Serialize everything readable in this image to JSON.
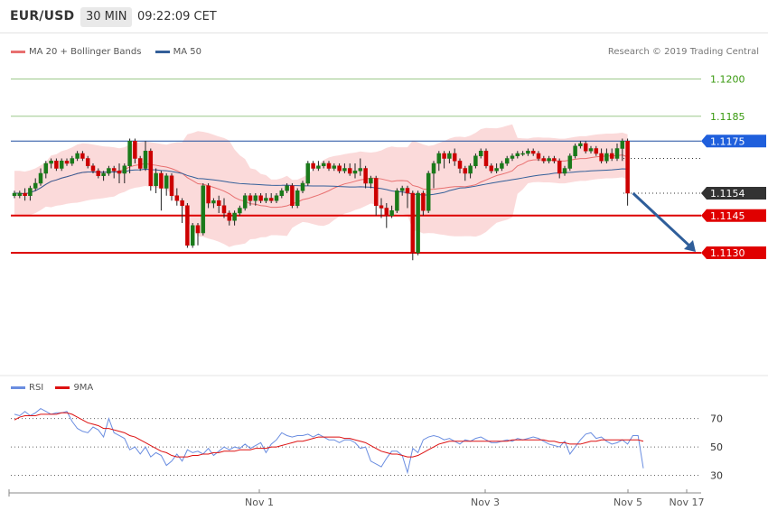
{
  "header": {
    "symbol": "EUR/USD",
    "timeframe": "30 MIN",
    "time": "09:22:09 CET"
  },
  "legend": {
    "ma20": "MA 20 + Bollinger Bands",
    "ma50": "MA 50",
    "credit": "Research © 2019 Trading Central"
  },
  "rsi_legend": {
    "rsi": "RSI",
    "ma": "9MA"
  },
  "colors": {
    "up": "#1a7a1a",
    "down": "#cc0000",
    "ma20": "#e87070",
    "ma50": "#335f99",
    "band": "#fbdada",
    "rsi": "#6a8de0",
    "rsi_ma": "#dd1111"
  },
  "chart_data": [
    {
      "type": "candlestick",
      "ylim": [
        1.1082,
        1.1218
      ],
      "x": [
        "Nov 1",
        "Nov 3",
        "Nov 5",
        "Nov 17"
      ],
      "levels": [
        {
          "value": 1.12,
          "label": "1.1200",
          "style": "target"
        },
        {
          "value": 1.1185,
          "label": "1.1185",
          "style": "target"
        },
        {
          "value": 1.1175,
          "label": "1.1175",
          "style": "pivot"
        },
        {
          "value": 1.1154,
          "label": "1.1154",
          "style": "last"
        },
        {
          "value": 1.1145,
          "label": "1.1145",
          "style": "support"
        },
        {
          "value": 1.113,
          "label": "1.1130",
          "style": "support"
        }
      ],
      "forecast": {
        "from": 1.1154,
        "to": 1.113
      },
      "candles": [
        [
          1.1153,
          1.1154,
          1.1152,
          1.1155
        ],
        [
          1.1153,
          1.1154,
          1.1152,
          1.1155
        ],
        [
          1.1154,
          1.1153,
          1.1151,
          1.1156
        ],
        [
          1.1153,
          1.1156,
          1.1151,
          1.1157
        ],
        [
          1.1156,
          1.1158,
          1.1155,
          1.116
        ],
        [
          1.1158,
          1.1162,
          1.1157,
          1.1164
        ],
        [
          1.1162,
          1.1166,
          1.116,
          1.1167
        ],
        [
          1.1166,
          1.1167,
          1.1164,
          1.1168
        ],
        [
          1.1167,
          1.1164,
          1.1163,
          1.1168
        ],
        [
          1.1164,
          1.1167,
          1.1163,
          1.1168
        ],
        [
          1.1167,
          1.1166,
          1.1165,
          1.1168
        ],
        [
          1.1166,
          1.1168,
          1.1165,
          1.1169
        ],
        [
          1.1168,
          1.117,
          1.1167,
          1.1171
        ],
        [
          1.117,
          1.1168,
          1.1167,
          1.1171
        ],
        [
          1.1168,
          1.1165,
          1.1164,
          1.1169
        ],
        [
          1.1165,
          1.1163,
          1.1162,
          1.1166
        ],
        [
          1.1163,
          1.1161,
          1.116,
          1.1164
        ],
        [
          1.1161,
          1.1162,
          1.1159,
          1.1163
        ],
        [
          1.1162,
          1.1164,
          1.1161,
          1.1165
        ],
        [
          1.1164,
          1.1163,
          1.116,
          1.1165
        ],
        [
          1.1163,
          1.1162,
          1.1158,
          1.1166
        ],
        [
          1.1162,
          1.1165,
          1.1158,
          1.1166
        ],
        [
          1.1165,
          1.1175,
          1.1162,
          1.1176
        ],
        [
          1.1175,
          1.1168,
          1.1166,
          1.1176
        ],
        [
          1.1168,
          1.1164,
          1.1163,
          1.1169
        ],
        [
          1.1164,
          1.1171,
          1.1163,
          1.1175
        ],
        [
          1.1171,
          1.1157,
          1.1155,
          1.1172
        ],
        [
          1.1157,
          1.1162,
          1.1154,
          1.1164
        ],
        [
          1.1162,
          1.1156,
          1.1147,
          1.1163
        ],
        [
          1.1156,
          1.1161,
          1.1153,
          1.1162
        ],
        [
          1.1161,
          1.1153,
          1.1151,
          1.1162
        ],
        [
          1.1153,
          1.1151,
          1.1149,
          1.1156
        ],
        [
          1.1151,
          1.1149,
          1.1142,
          1.1152
        ],
        [
          1.1149,
          1.1133,
          1.1132,
          1.115
        ],
        [
          1.1133,
          1.1141,
          1.1132,
          1.1142
        ],
        [
          1.1141,
          1.1138,
          1.1133,
          1.1142
        ],
        [
          1.1138,
          1.1157,
          1.1137,
          1.1158
        ],
        [
          1.1157,
          1.115,
          1.1148,
          1.1158
        ],
        [
          1.115,
          1.1151,
          1.1148,
          1.1152
        ],
        [
          1.1151,
          1.1149,
          1.1146,
          1.1153
        ],
        [
          1.1149,
          1.1146,
          1.1144,
          1.1152
        ],
        [
          1.1146,
          1.1143,
          1.1141,
          1.1147
        ],
        [
          1.1143,
          1.1146,
          1.1141,
          1.1147
        ],
        [
          1.1146,
          1.1148,
          1.1145,
          1.1149
        ],
        [
          1.1148,
          1.1153,
          1.1147,
          1.1154
        ],
        [
          1.1153,
          1.1151,
          1.1149,
          1.1154
        ],
        [
          1.1151,
          1.1153,
          1.1149,
          1.1154
        ],
        [
          1.1153,
          1.1151,
          1.115,
          1.1154
        ],
        [
          1.1151,
          1.1152,
          1.115,
          1.1154
        ],
        [
          1.1152,
          1.1151,
          1.115,
          1.1154
        ],
        [
          1.1151,
          1.1153,
          1.115,
          1.1154
        ],
        [
          1.1153,
          1.1155,
          1.1152,
          1.1156
        ],
        [
          1.1155,
          1.1157,
          1.1154,
          1.1158
        ],
        [
          1.1157,
          1.1149,
          1.1148,
          1.1158
        ],
        [
          1.1149,
          1.1155,
          1.1148,
          1.1156
        ],
        [
          1.1155,
          1.1158,
          1.1154,
          1.1159
        ],
        [
          1.1158,
          1.1166,
          1.1157,
          1.1167
        ],
        [
          1.1166,
          1.1164,
          1.1163,
          1.1167
        ],
        [
          1.1164,
          1.1165,
          1.1163,
          1.1167
        ],
        [
          1.1165,
          1.1166,
          1.1164,
          1.1167
        ],
        [
          1.1166,
          1.1164,
          1.1163,
          1.1167
        ],
        [
          1.1164,
          1.1165,
          1.1163,
          1.1166
        ],
        [
          1.1165,
          1.1163,
          1.1162,
          1.1166
        ],
        [
          1.1163,
          1.1164,
          1.1162,
          1.1166
        ],
        [
          1.1164,
          1.1162,
          1.1161,
          1.1166
        ],
        [
          1.1162,
          1.1163,
          1.116,
          1.1166
        ],
        [
          1.1163,
          1.1164,
          1.1161,
          1.1168
        ],
        [
          1.1164,
          1.1158,
          1.1156,
          1.1165
        ],
        [
          1.1158,
          1.116,
          1.1156,
          1.1161
        ],
        [
          1.116,
          1.1149,
          1.1145,
          1.1161
        ],
        [
          1.1149,
          1.1148,
          1.1144,
          1.1152
        ],
        [
          1.1148,
          1.1145,
          1.114,
          1.115
        ],
        [
          1.1145,
          1.1147,
          1.1144,
          1.1149
        ],
        [
          1.1147,
          1.1155,
          1.1146,
          1.1156
        ],
        [
          1.1155,
          1.1156,
          1.1153,
          1.1157
        ],
        [
          1.1156,
          1.1154,
          1.1148,
          1.1157
        ],
        [
          1.1154,
          1.113,
          1.1127,
          1.1155
        ],
        [
          1.113,
          1.1154,
          1.1129,
          1.1155
        ],
        [
          1.1154,
          1.1147,
          1.1145,
          1.1155
        ],
        [
          1.1147,
          1.1162,
          1.1146,
          1.1163
        ],
        [
          1.1162,
          1.1166,
          1.1156,
          1.1167
        ],
        [
          1.1166,
          1.117,
          1.1163,
          1.1171
        ],
        [
          1.117,
          1.1168,
          1.1164,
          1.1171
        ],
        [
          1.1168,
          1.117,
          1.1166,
          1.1171
        ],
        [
          1.117,
          1.1167,
          1.1165,
          1.1172
        ],
        [
          1.1167,
          1.1164,
          1.1162,
          1.1168
        ],
        [
          1.1164,
          1.1162,
          1.1159,
          1.1165
        ],
        [
          1.1162,
          1.1165,
          1.116,
          1.1166
        ],
        [
          1.1165,
          1.1169,
          1.1164,
          1.117
        ],
        [
          1.1169,
          1.1171,
          1.1168,
          1.1172
        ],
        [
          1.1171,
          1.1165,
          1.1164,
          1.1172
        ],
        [
          1.1165,
          1.1163,
          1.1162,
          1.1166
        ],
        [
          1.1163,
          1.1164,
          1.1162,
          1.1166
        ],
        [
          1.1164,
          1.1166,
          1.1163,
          1.1167
        ],
        [
          1.1166,
          1.1168,
          1.1165,
          1.1169
        ],
        [
          1.1168,
          1.1169,
          1.1167,
          1.117
        ],
        [
          1.1169,
          1.117,
          1.1168,
          1.1171
        ],
        [
          1.117,
          1.117,
          1.1169,
          1.1171
        ],
        [
          1.117,
          1.1171,
          1.1169,
          1.1172
        ],
        [
          1.1171,
          1.117,
          1.1169,
          1.1172
        ],
        [
          1.117,
          1.1168,
          1.1167,
          1.1171
        ],
        [
          1.1168,
          1.1167,
          1.1166,
          1.1169
        ],
        [
          1.1167,
          1.1168,
          1.1166,
          1.1169
        ],
        [
          1.1168,
          1.1167,
          1.1166,
          1.1169
        ],
        [
          1.1167,
          1.1162,
          1.116,
          1.1168
        ],
        [
          1.1162,
          1.1164,
          1.1161,
          1.1165
        ],
        [
          1.1164,
          1.1169,
          1.1163,
          1.117
        ],
        [
          1.1169,
          1.1173,
          1.1168,
          1.1174
        ],
        [
          1.1173,
          1.1174,
          1.1172,
          1.1175
        ],
        [
          1.1174,
          1.1171,
          1.117,
          1.1175
        ],
        [
          1.1171,
          1.1172,
          1.117,
          1.1173
        ],
        [
          1.1172,
          1.117,
          1.1169,
          1.1173
        ],
        [
          1.117,
          1.1167,
          1.1166,
          1.1172
        ],
        [
          1.1167,
          1.117,
          1.1166,
          1.1172
        ],
        [
          1.117,
          1.1168,
          1.1167,
          1.1172
        ],
        [
          1.1168,
          1.1172,
          1.1167,
          1.1174
        ],
        [
          1.1172,
          1.1175,
          1.1167,
          1.1176
        ],
        [
          1.1175,
          1.1154,
          1.1149,
          1.1176
        ]
      ]
    },
    {
      "type": "line",
      "title": "RSI",
      "ylim": [
        24,
        85
      ],
      "yticks": [
        30,
        50,
        70
      ],
      "series": [
        {
          "name": "RSI",
          "values": [
            73,
            72,
            75,
            72,
            74,
            77,
            75,
            73,
            74,
            74,
            75,
            68,
            63,
            61,
            60,
            64,
            62,
            57,
            70,
            60,
            58,
            56,
            48,
            50,
            45,
            50,
            43,
            46,
            44,
            37,
            40,
            45,
            40,
            48,
            46,
            47,
            45,
            49,
            44,
            47,
            50,
            48,
            50,
            49,
            52,
            49,
            51,
            53,
            46,
            52,
            55,
            60,
            58,
            57,
            58,
            58,
            59,
            57,
            59,
            57,
            55,
            55,
            53,
            55,
            55,
            53,
            49,
            50,
            40,
            38,
            36,
            42,
            47,
            47,
            44,
            32,
            49,
            46,
            55,
            57,
            58,
            57,
            55,
            56,
            54,
            52,
            55,
            54,
            56,
            57,
            55,
            53,
            53,
            54,
            55,
            54,
            56,
            55,
            56,
            57,
            56,
            54,
            52,
            51,
            50,
            54,
            45,
            50,
            55,
            59,
            60,
            56,
            57,
            54,
            52,
            53,
            55,
            52,
            58,
            58,
            35
          ]
        },
        {
          "name": "9MA",
          "values": [
            69,
            71,
            72,
            72,
            72,
            73,
            73,
            73,
            73,
            74,
            74,
            73,
            71,
            69,
            67,
            66,
            65,
            63,
            63,
            62,
            61,
            60,
            58,
            57,
            55,
            53,
            51,
            49,
            47,
            46,
            44,
            43,
            43,
            43,
            44,
            44,
            45,
            45,
            46,
            46,
            47,
            47,
            47,
            48,
            48,
            48,
            49,
            49,
            49,
            50,
            50,
            51,
            52,
            53,
            54,
            54,
            55,
            56,
            57,
            57,
            57,
            57,
            57,
            56,
            56,
            55,
            54,
            53,
            51,
            49,
            47,
            46,
            45,
            45,
            44,
            43,
            43,
            44,
            46,
            48,
            50,
            52,
            53,
            54,
            54,
            54,
            54,
            54,
            54,
            54,
            54,
            54,
            54,
            54,
            54,
            55,
            55,
            55,
            55,
            55,
            55,
            55,
            54,
            54,
            53,
            53,
            52,
            52,
            52,
            53,
            54,
            54,
            55,
            55,
            55,
            55,
            55,
            55,
            55,
            55,
            54
          ]
        }
      ]
    }
  ]
}
